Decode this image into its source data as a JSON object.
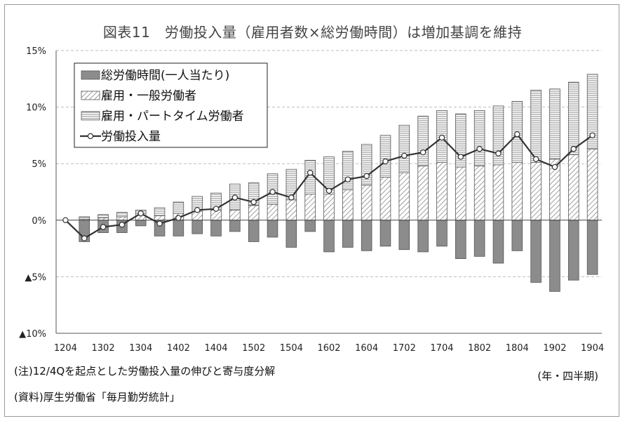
{
  "chart_data": {
    "type": "bar",
    "title": "図表11　労働投入量（雇用者数×総労働時間）は増加基調を維持",
    "x_unit": "(年・四半期)",
    "categories": [
      "1204",
      "1301",
      "1302",
      "1303",
      "1304",
      "1401",
      "1402",
      "1403",
      "1404",
      "1501",
      "1502",
      "1503",
      "1504",
      "1601",
      "1602",
      "1603",
      "1604",
      "1701",
      "1702",
      "1703",
      "1704",
      "1801",
      "1802",
      "1803",
      "1804",
      "1901",
      "1902",
      "1903",
      "1904"
    ],
    "x_tick_labels": [
      "1204",
      "1302",
      "1304",
      "1402",
      "1404",
      "1502",
      "1504",
      "1602",
      "1604",
      "1702",
      "1704",
      "1802",
      "1804",
      "1902",
      "1904"
    ],
    "ylim": [
      -10,
      15
    ],
    "y_ticks": [
      15,
      10,
      5,
      0,
      -5,
      -10
    ],
    "y_tick_labels": [
      "15%",
      "10%",
      "5%",
      "0%",
      "▲5%",
      "▲10%"
    ],
    "grid": true,
    "legend_position": "top-left",
    "series": [
      {
        "name": "総労働時間(一人当たり)",
        "kind": "bar",
        "fill": "#8c8c8c",
        "values": [
          0,
          -1.9,
          -1.1,
          -1.1,
          -0.5,
          -1.4,
          -1.4,
          -1.2,
          -1.4,
          -1.0,
          -1.9,
          -1.5,
          -2.4,
          -1.0,
          -2.8,
          -2.4,
          -2.7,
          -2.3,
          -2.6,
          -2.8,
          -2.3,
          -3.4,
          -3.2,
          -3.8,
          -2.7,
          -5.5,
          -6.3,
          -5.3,
          -4.8
        ]
      },
      {
        "name": "雇用・一般労働者",
        "kind": "bar",
        "fill": "hatched",
        "values": [
          0,
          0.1,
          0.2,
          0.3,
          0.6,
          0.4,
          0.6,
          0.8,
          0.9,
          0.9,
          1.3,
          1.4,
          1.8,
          2.3,
          2.3,
          2.7,
          3.1,
          3.8,
          4.2,
          4.8,
          5.1,
          4.7,
          4.8,
          4.9,
          5.1,
          5.1,
          5.4,
          5.8,
          6.3
        ]
      },
      {
        "name": "雇用・パートタイム労働者",
        "kind": "bar",
        "fill": "lined",
        "values": [
          0,
          0.2,
          0.3,
          0.4,
          0.3,
          0.7,
          1.0,
          1.3,
          1.5,
          2.3,
          2.0,
          2.7,
          2.7,
          3.0,
          3.3,
          3.4,
          3.6,
          3.7,
          4.2,
          4.4,
          4.6,
          4.7,
          4.9,
          5.2,
          5.4,
          6.4,
          6.2,
          6.4,
          6.6
        ]
      },
      {
        "name": "労働投入量",
        "kind": "line",
        "color": "#333333",
        "values": [
          0,
          -1.6,
          -0.6,
          -0.4,
          0.6,
          -0.3,
          0.2,
          0.9,
          1.0,
          2.0,
          1.6,
          2.5,
          2.0,
          4.2,
          2.6,
          3.6,
          3.9,
          5.2,
          5.7,
          6.0,
          7.3,
          5.6,
          6.3,
          5.9,
          7.6,
          5.4,
          4.7,
          6.3,
          7.5
        ]
      }
    ]
  },
  "notes": {
    "note1": "(注)12/4Qを起点とした労働投入量の伸びと寄与度分解",
    "note2": "(資料)厚生労働省「毎月勤労統計」"
  }
}
